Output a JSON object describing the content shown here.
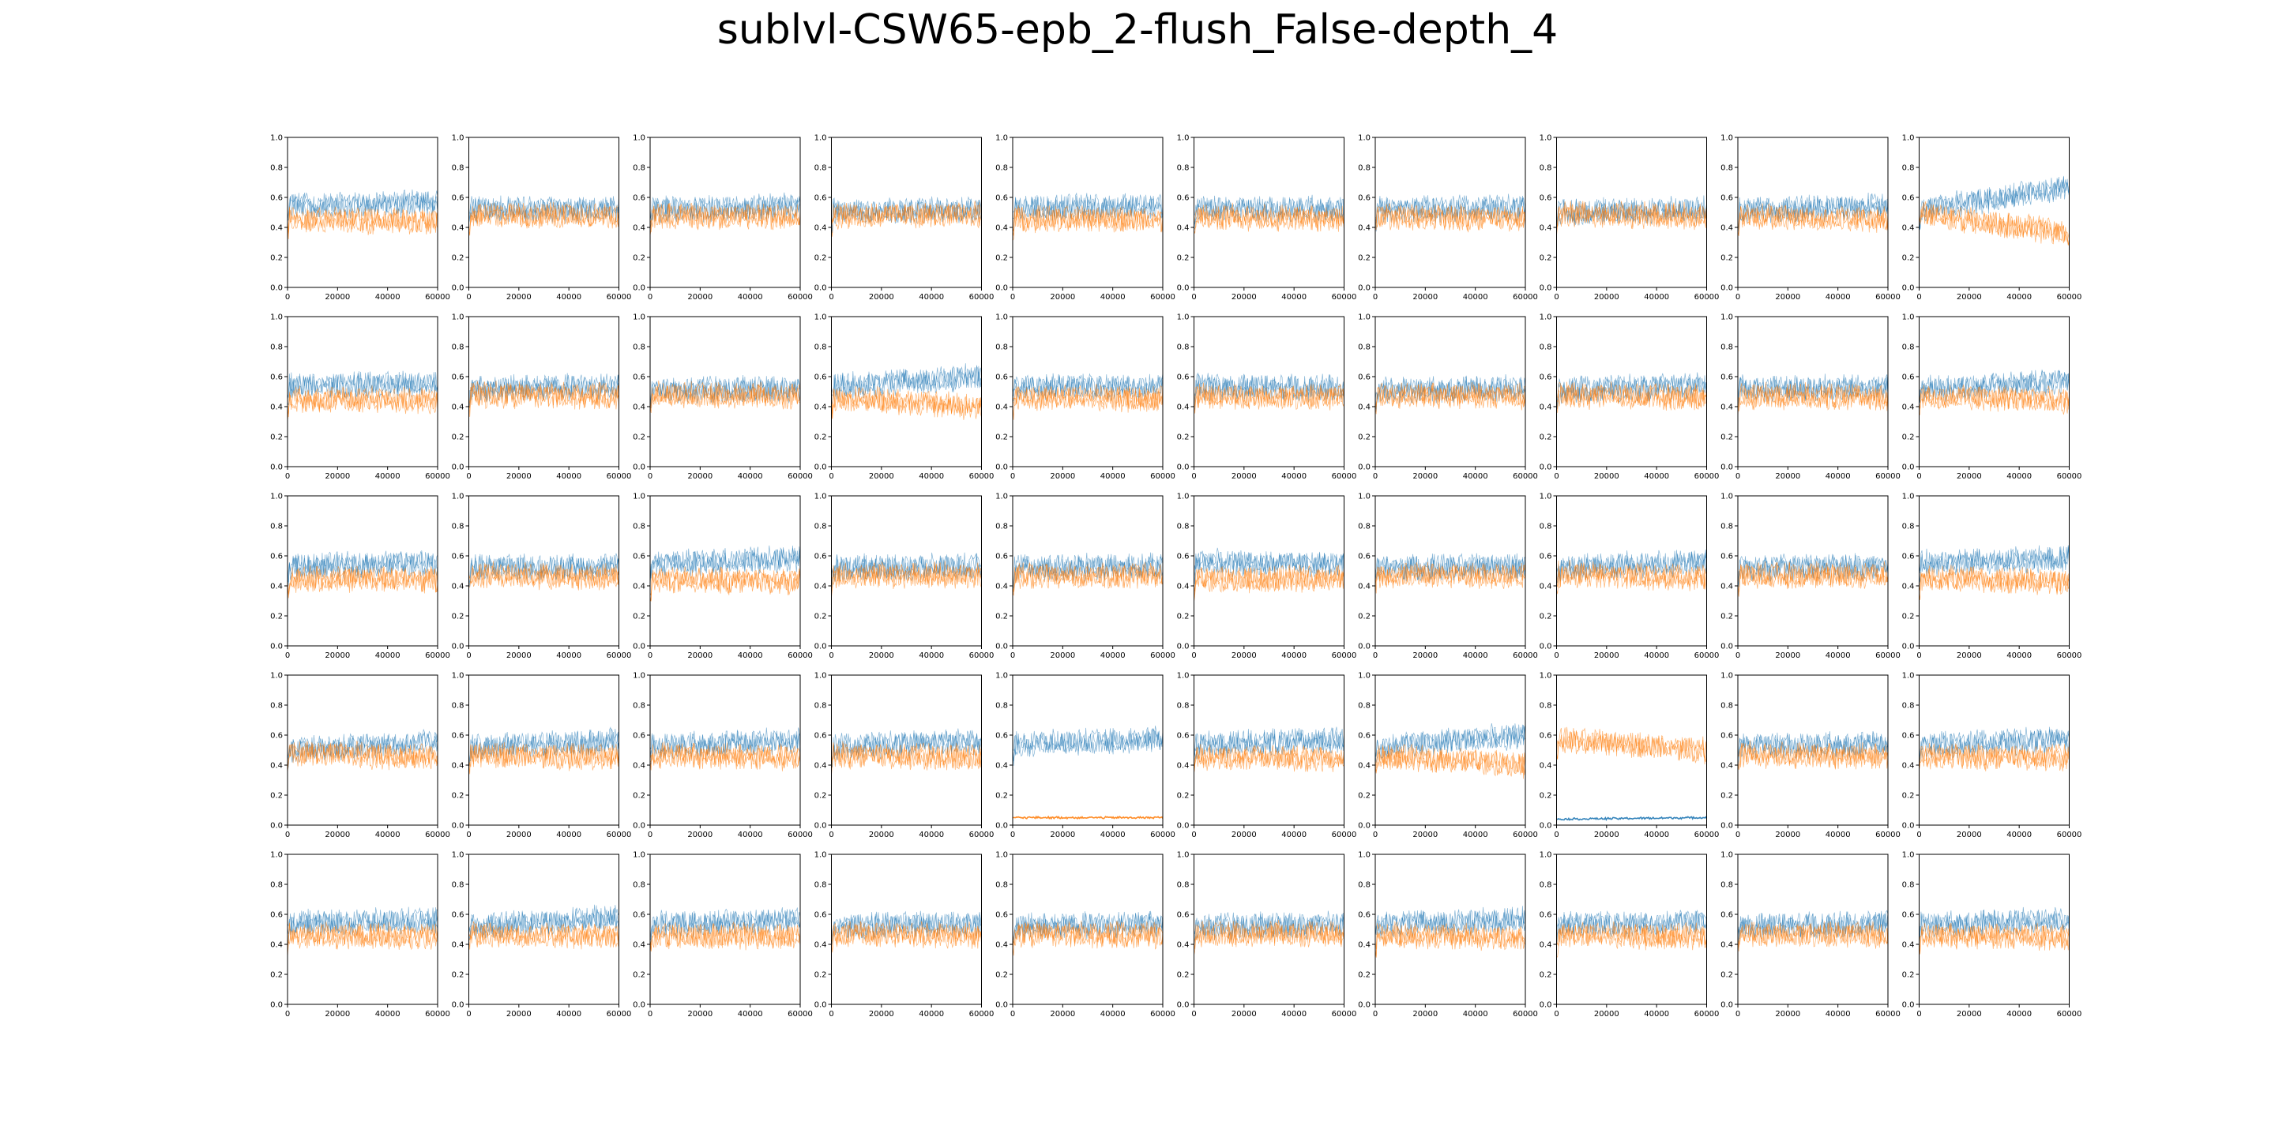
{
  "figure": {
    "title": "sublvl-CSW65-epb_2-flush_False-depth_4"
  },
  "colors": {
    "series_a": "#1f77b4",
    "series_b": "#ff7f0e",
    "axis": "#000000",
    "background": "#ffffff"
  },
  "chart_data": {
    "type": "line",
    "layout": {
      "rows": 5,
      "cols": 10
    },
    "xlim": [
      0,
      60000
    ],
    "ylim": [
      0.0,
      1.0
    ],
    "xticks": [
      0,
      20000,
      40000,
      60000
    ],
    "xtick_labels": [
      "0",
      "20000",
      "40000",
      "60000"
    ],
    "yticks": [
      0.0,
      0.2,
      0.4,
      0.6,
      0.8,
      1.0
    ],
    "ytick_labels": [
      "0.0",
      "0.2",
      "0.4",
      "0.6",
      "0.8",
      "1.0"
    ],
    "grid": false,
    "legend": "none",
    "series_count": 2,
    "note_values": "per-panel approximate mean levels of the two noisy series; blue drawn first, orange on top",
    "panels": [
      {
        "blue": [
          0.55,
          0.56
        ],
        "orange": [
          0.45,
          0.44
        ]
      },
      {
        "blue": [
          0.52,
          0.52
        ],
        "orange": [
          0.48,
          0.48
        ]
      },
      {
        "blue": [
          0.52,
          0.54
        ],
        "orange": [
          0.48,
          0.47
        ]
      },
      {
        "blue": [
          0.51,
          0.52
        ],
        "orange": [
          0.48,
          0.48
        ]
      },
      {
        "blue": [
          0.53,
          0.54
        ],
        "orange": [
          0.46,
          0.45
        ]
      },
      {
        "blue": [
          0.52,
          0.53
        ],
        "orange": [
          0.47,
          0.46
        ]
      },
      {
        "blue": [
          0.52,
          0.53
        ],
        "orange": [
          0.47,
          0.46
        ]
      },
      {
        "blue": [
          0.5,
          0.52
        ],
        "orange": [
          0.49,
          0.47
        ]
      },
      {
        "blue": [
          0.51,
          0.55
        ],
        "orange": [
          0.48,
          0.45
        ]
      },
      {
        "blue": [
          0.51,
          0.67
        ],
        "orange": [
          0.49,
          0.36
        ]
      },
      {
        "blue": [
          0.54,
          0.55
        ],
        "orange": [
          0.45,
          0.44
        ]
      },
      {
        "blue": [
          0.52,
          0.54
        ],
        "orange": [
          0.48,
          0.47
        ]
      },
      {
        "blue": [
          0.51,
          0.52
        ],
        "orange": [
          0.48,
          0.47
        ]
      },
      {
        "blue": [
          0.53,
          0.6
        ],
        "orange": [
          0.46,
          0.4
        ]
      },
      {
        "blue": [
          0.53,
          0.54
        ],
        "orange": [
          0.46,
          0.45
        ]
      },
      {
        "blue": [
          0.53,
          0.53
        ],
        "orange": [
          0.47,
          0.46
        ]
      },
      {
        "blue": [
          0.51,
          0.52
        ],
        "orange": [
          0.48,
          0.47
        ]
      },
      {
        "blue": [
          0.51,
          0.54
        ],
        "orange": [
          0.48,
          0.46
        ]
      },
      {
        "blue": [
          0.52,
          0.53
        ],
        "orange": [
          0.47,
          0.46
        ]
      },
      {
        "blue": [
          0.52,
          0.57
        ],
        "orange": [
          0.47,
          0.44
        ]
      },
      {
        "blue": [
          0.53,
          0.55
        ],
        "orange": [
          0.45,
          0.44
        ]
      },
      {
        "blue": [
          0.52,
          0.53
        ],
        "orange": [
          0.47,
          0.46
        ]
      },
      {
        "blue": [
          0.55,
          0.58
        ],
        "orange": [
          0.44,
          0.43
        ]
      },
      {
        "blue": [
          0.52,
          0.53
        ],
        "orange": [
          0.47,
          0.47
        ]
      },
      {
        "blue": [
          0.52,
          0.53
        ],
        "orange": [
          0.47,
          0.47
        ]
      },
      {
        "blue": [
          0.56,
          0.54
        ],
        "orange": [
          0.44,
          0.45
        ]
      },
      {
        "blue": [
          0.52,
          0.53
        ],
        "orange": [
          0.47,
          0.47
        ]
      },
      {
        "blue": [
          0.52,
          0.56
        ],
        "orange": [
          0.48,
          0.45
        ]
      },
      {
        "blue": [
          0.52,
          0.53
        ],
        "orange": [
          0.47,
          0.47
        ]
      },
      {
        "blue": [
          0.55,
          0.58
        ],
        "orange": [
          0.45,
          0.43
        ]
      },
      {
        "blue": [
          0.5,
          0.56
        ],
        "orange": [
          0.48,
          0.45
        ]
      },
      {
        "blue": [
          0.52,
          0.56
        ],
        "orange": [
          0.47,
          0.45
        ]
      },
      {
        "blue": [
          0.53,
          0.56
        ],
        "orange": [
          0.47,
          0.45
        ]
      },
      {
        "blue": [
          0.52,
          0.56
        ],
        "orange": [
          0.47,
          0.45
        ]
      },
      {
        "blue": [
          0.54,
          0.57
        ],
        "orange": [
          0.05,
          0.05
        ]
      },
      {
        "blue": [
          0.53,
          0.57
        ],
        "orange": [
          0.46,
          0.44
        ]
      },
      {
        "blue": [
          0.52,
          0.6
        ],
        "orange": [
          0.46,
          0.4
        ]
      },
      {
        "blue": [
          0.04,
          0.05
        ],
        "orange": [
          0.57,
          0.5
        ]
      },
      {
        "blue": [
          0.53,
          0.54
        ],
        "orange": [
          0.47,
          0.46
        ]
      },
      {
        "blue": [
          0.53,
          0.57
        ],
        "orange": [
          0.46,
          0.45
        ]
      },
      {
        "blue": [
          0.54,
          0.56
        ],
        "orange": [
          0.46,
          0.45
        ]
      },
      {
        "blue": [
          0.52,
          0.58
        ],
        "orange": [
          0.47,
          0.45
        ]
      },
      {
        "blue": [
          0.53,
          0.56
        ],
        "orange": [
          0.46,
          0.45
        ]
      },
      {
        "blue": [
          0.52,
          0.54
        ],
        "orange": [
          0.47,
          0.46
        ]
      },
      {
        "blue": [
          0.52,
          0.54
        ],
        "orange": [
          0.47,
          0.46
        ]
      },
      {
        "blue": [
          0.52,
          0.53
        ],
        "orange": [
          0.47,
          0.47
        ]
      },
      {
        "blue": [
          0.53,
          0.56
        ],
        "orange": [
          0.46,
          0.45
        ]
      },
      {
        "blue": [
          0.53,
          0.55
        ],
        "orange": [
          0.46,
          0.45
        ]
      },
      {
        "blue": [
          0.52,
          0.54
        ],
        "orange": [
          0.47,
          0.46
        ]
      },
      {
        "blue": [
          0.53,
          0.56
        ],
        "orange": [
          0.46,
          0.45
        ]
      }
    ]
  }
}
